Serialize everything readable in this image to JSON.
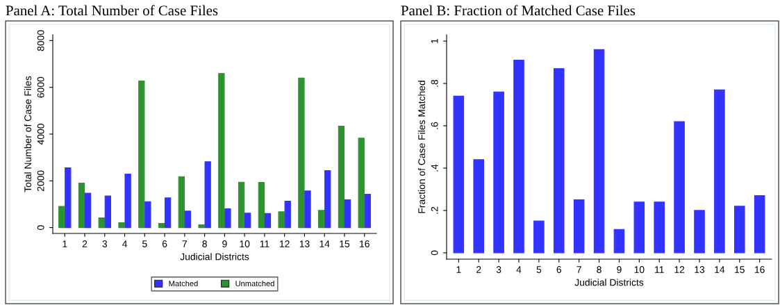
{
  "chart_data": [
    {
      "type": "bar",
      "title": "Panel A: Total Number of Case Files",
      "xlabel": "Judicial Districts",
      "ylabel": "Total Number of Case Files",
      "categories": [
        "1",
        "2",
        "3",
        "4",
        "5",
        "6",
        "7",
        "8",
        "9",
        "10",
        "11",
        "12",
        "13",
        "14",
        "15",
        "16"
      ],
      "series": [
        {
          "name": "Unmatched",
          "color": "#2e9230",
          "values": [
            910,
            1900,
            415,
            210,
            6270,
            180,
            2180,
            120,
            6590,
            1940,
            1930,
            680,
            6400,
            740,
            4340,
            3830
          ]
        },
        {
          "name": "Matched",
          "color": "#3333ff",
          "values": [
            2560,
            1470,
            1350,
            2290,
            1110,
            1270,
            710,
            2820,
            800,
            620,
            600,
            1130,
            1570,
            2440,
            1190,
            1430
          ]
        }
      ],
      "ylim": [
        -250,
        8250
      ],
      "yticks": [
        0,
        2000,
        4000,
        6000,
        8000
      ],
      "grid": false,
      "legend": "bottom"
    },
    {
      "type": "bar",
      "title": "Panel B: Fraction of Matched Case Files",
      "xlabel": "Judicial Districts",
      "ylabel": "Fraction of Case Files Matched",
      "categories": [
        "1",
        "2",
        "3",
        "4",
        "5",
        "6",
        "7",
        "8",
        "9",
        "10",
        "11",
        "12",
        "13",
        "14",
        "15",
        "16"
      ],
      "series": [
        {
          "color": "#3333ff",
          "values": [
            0.74,
            0.44,
            0.76,
            0.91,
            0.15,
            0.87,
            0.25,
            0.96,
            0.11,
            0.24,
            0.24,
            0.62,
            0.2,
            0.77,
            0.22,
            0.27
          ]
        }
      ],
      "ylim": [
        -0.03,
        1.03
      ],
      "yticks": [
        {
          "value": 0,
          "label": "0"
        },
        {
          "value": 0.2,
          "label": ".2"
        },
        {
          "value": 0.4,
          "label": ".4"
        },
        {
          "value": 0.6,
          "label": ".6"
        },
        {
          "value": 0.8,
          "label": ".8"
        },
        {
          "value": 1,
          "label": "1"
        }
      ],
      "grid": false
    }
  ]
}
